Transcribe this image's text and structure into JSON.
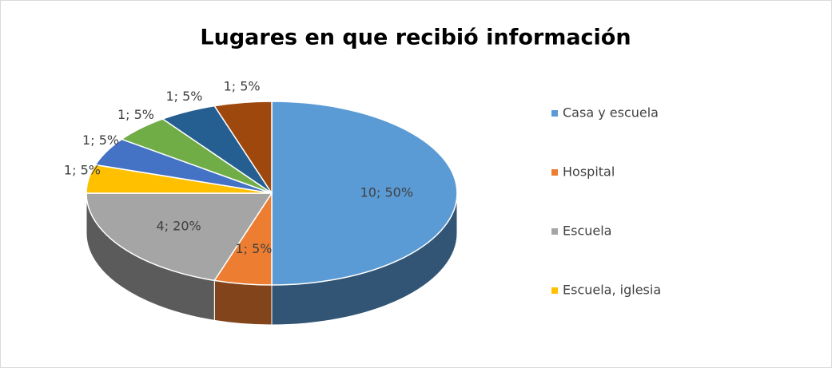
{
  "chart_data": {
    "type": "pie",
    "title": "Lugares en que recibió información",
    "categories": [
      "Casa y escuela",
      "Hospital",
      "Escuela",
      "Escuela, iglesia",
      null,
      null,
      null,
      null
    ],
    "values": [
      10,
      1,
      4,
      1,
      1,
      1,
      1,
      1
    ],
    "value_labels": [
      "10; 50%",
      "1; 5%",
      "4; 20%",
      "1; 5%",
      "1; 5%",
      "1; 5%",
      "1; 5%",
      "1; 5%"
    ],
    "colors": [
      "#5b9bd5",
      "#ed7d31",
      "#a5a5a5",
      "#ffc000",
      "#4472c4",
      "#70ad47",
      "#255e91",
      "#9e480e"
    ],
    "legend": "right"
  }
}
